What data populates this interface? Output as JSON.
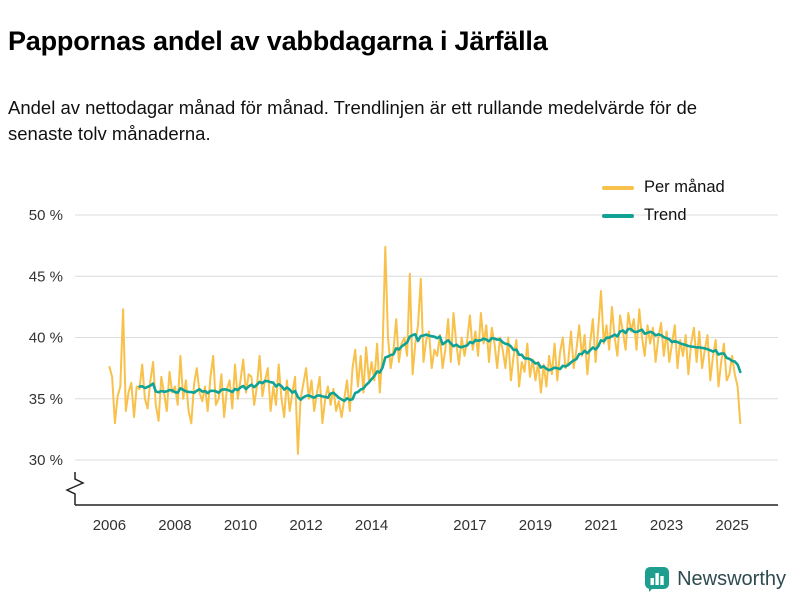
{
  "title": "Pappornas andel av vabbdagarna i Järfälla",
  "subtitle": "Andel av nettodagar månad för månad. Trendlinjen är ett rullande medelvärde för de senaste tolv månaderna.",
  "footer": {
    "brand": "Newsworthy"
  },
  "colors": {
    "monthly": "#f8c14b",
    "trend": "#10a295",
    "grid": "#dcdcdc",
    "axis": "#222222",
    "text": "#333333",
    "logo_teal": "#1d9e8f"
  },
  "chart_data": {
    "type": "line",
    "title": "Pappornas andel av vabbdagarna i Järfälla",
    "xlabel": "",
    "ylabel": "",
    "grid": "horizontal",
    "legend_position": "top-right",
    "axis_break": true,
    "ylim": [
      30,
      50
    ],
    "xlim": [
      2004.95,
      2026.4
    ],
    "y_ticks": [
      30,
      35,
      40,
      45,
      50
    ],
    "y_tick_labels": [
      "30 %",
      "35 %",
      "40 %",
      "45 %",
      "50 %"
    ],
    "x_ticks": [
      2006,
      2008,
      2010,
      2012,
      2014,
      2017,
      2019,
      2021,
      2023,
      2025
    ],
    "x_start": 2006.0,
    "x_step_months": 1,
    "series": [
      {
        "name": "Per månad",
        "values": [
          37.6,
          36.8,
          33.0,
          35.2,
          36.0,
          42.3,
          34.0,
          35.5,
          36.3,
          33.5,
          36.0,
          35.8,
          37.8,
          35.0,
          34.2,
          36.5,
          38.0,
          34.5,
          33.2,
          36.8,
          35.5,
          34.0,
          37.2,
          35.5,
          36.0,
          34.5,
          38.5,
          35.0,
          36.5,
          34.0,
          33.0,
          36.2,
          37.5,
          35.5,
          34.8,
          36.0,
          34.0,
          36.8,
          38.5,
          34.5,
          35.0,
          37.0,
          33.5,
          35.8,
          36.5,
          34.2,
          37.8,
          35.0,
          36.5,
          38.2,
          35.5,
          37.0,
          36.8,
          34.5,
          36.0,
          38.5,
          35.2,
          36.5,
          37.5,
          34.0,
          36.0,
          34.5,
          37.8,
          35.0,
          33.5,
          36.5,
          34.0,
          35.5,
          36.8,
          30.5,
          35.0,
          36.2,
          37.5,
          35.0,
          36.5,
          34.0,
          35.5,
          36.8,
          33.0,
          35.0,
          36.0,
          34.5,
          35.8,
          34.0,
          34.8,
          33.5,
          35.0,
          36.5,
          34.0,
          37.5,
          39.0,
          36.0,
          38.5,
          35.5,
          39.2,
          36.5,
          38.0,
          36.5,
          39.5,
          35.5,
          38.8,
          47.4,
          40.0,
          37.5,
          39.0,
          41.5,
          38.0,
          39.5,
          40.0,
          38.5,
          45.2,
          37.0,
          39.5,
          41.0,
          44.8,
          38.0,
          39.8,
          40.5,
          37.5,
          39.0,
          38.5,
          40.2,
          37.5,
          39.0,
          41.5,
          38.0,
          42.0,
          39.5,
          37.8,
          40.0,
          38.5,
          39.8,
          41.8,
          39.0,
          40.5,
          38.5,
          42.0,
          39.5,
          41.0,
          38.0,
          40.8,
          39.5,
          37.5,
          40.0,
          39.0,
          37.5,
          40.0,
          36.5,
          38.5,
          39.8,
          36.0,
          38.0,
          37.2,
          39.5,
          36.8,
          38.2,
          36.5,
          38.0,
          35.5,
          37.8,
          36.0,
          38.5,
          37.0,
          39.5,
          36.5,
          38.8,
          40.0,
          37.5,
          38.0,
          40.5,
          37.5,
          39.0,
          41.0,
          38.5,
          40.2,
          37.0,
          39.5,
          41.5,
          38.0,
          40.8,
          43.8,
          39.5,
          41.0,
          39.0,
          42.5,
          40.0,
          38.5,
          41.8,
          40.5,
          39.0,
          42.0,
          40.5,
          41.5,
          39.0,
          42.3,
          40.0,
          38.5,
          41.0,
          39.5,
          40.8,
          38.0,
          40.0,
          41.2,
          38.5,
          40.5,
          38.0,
          39.5,
          41.0,
          37.5,
          39.8,
          38.5,
          40.2,
          37.0,
          39.5,
          40.8,
          38.0,
          40.5,
          37.5,
          39.0,
          40.2,
          36.5,
          38.5,
          39.8,
          36.0,
          38.0,
          39.5,
          36.5,
          37.0,
          38.5,
          37.0,
          36.0,
          33.0
        ]
      },
      {
        "name": "Trend",
        "derived": "rolling_mean_12_months"
      }
    ]
  }
}
